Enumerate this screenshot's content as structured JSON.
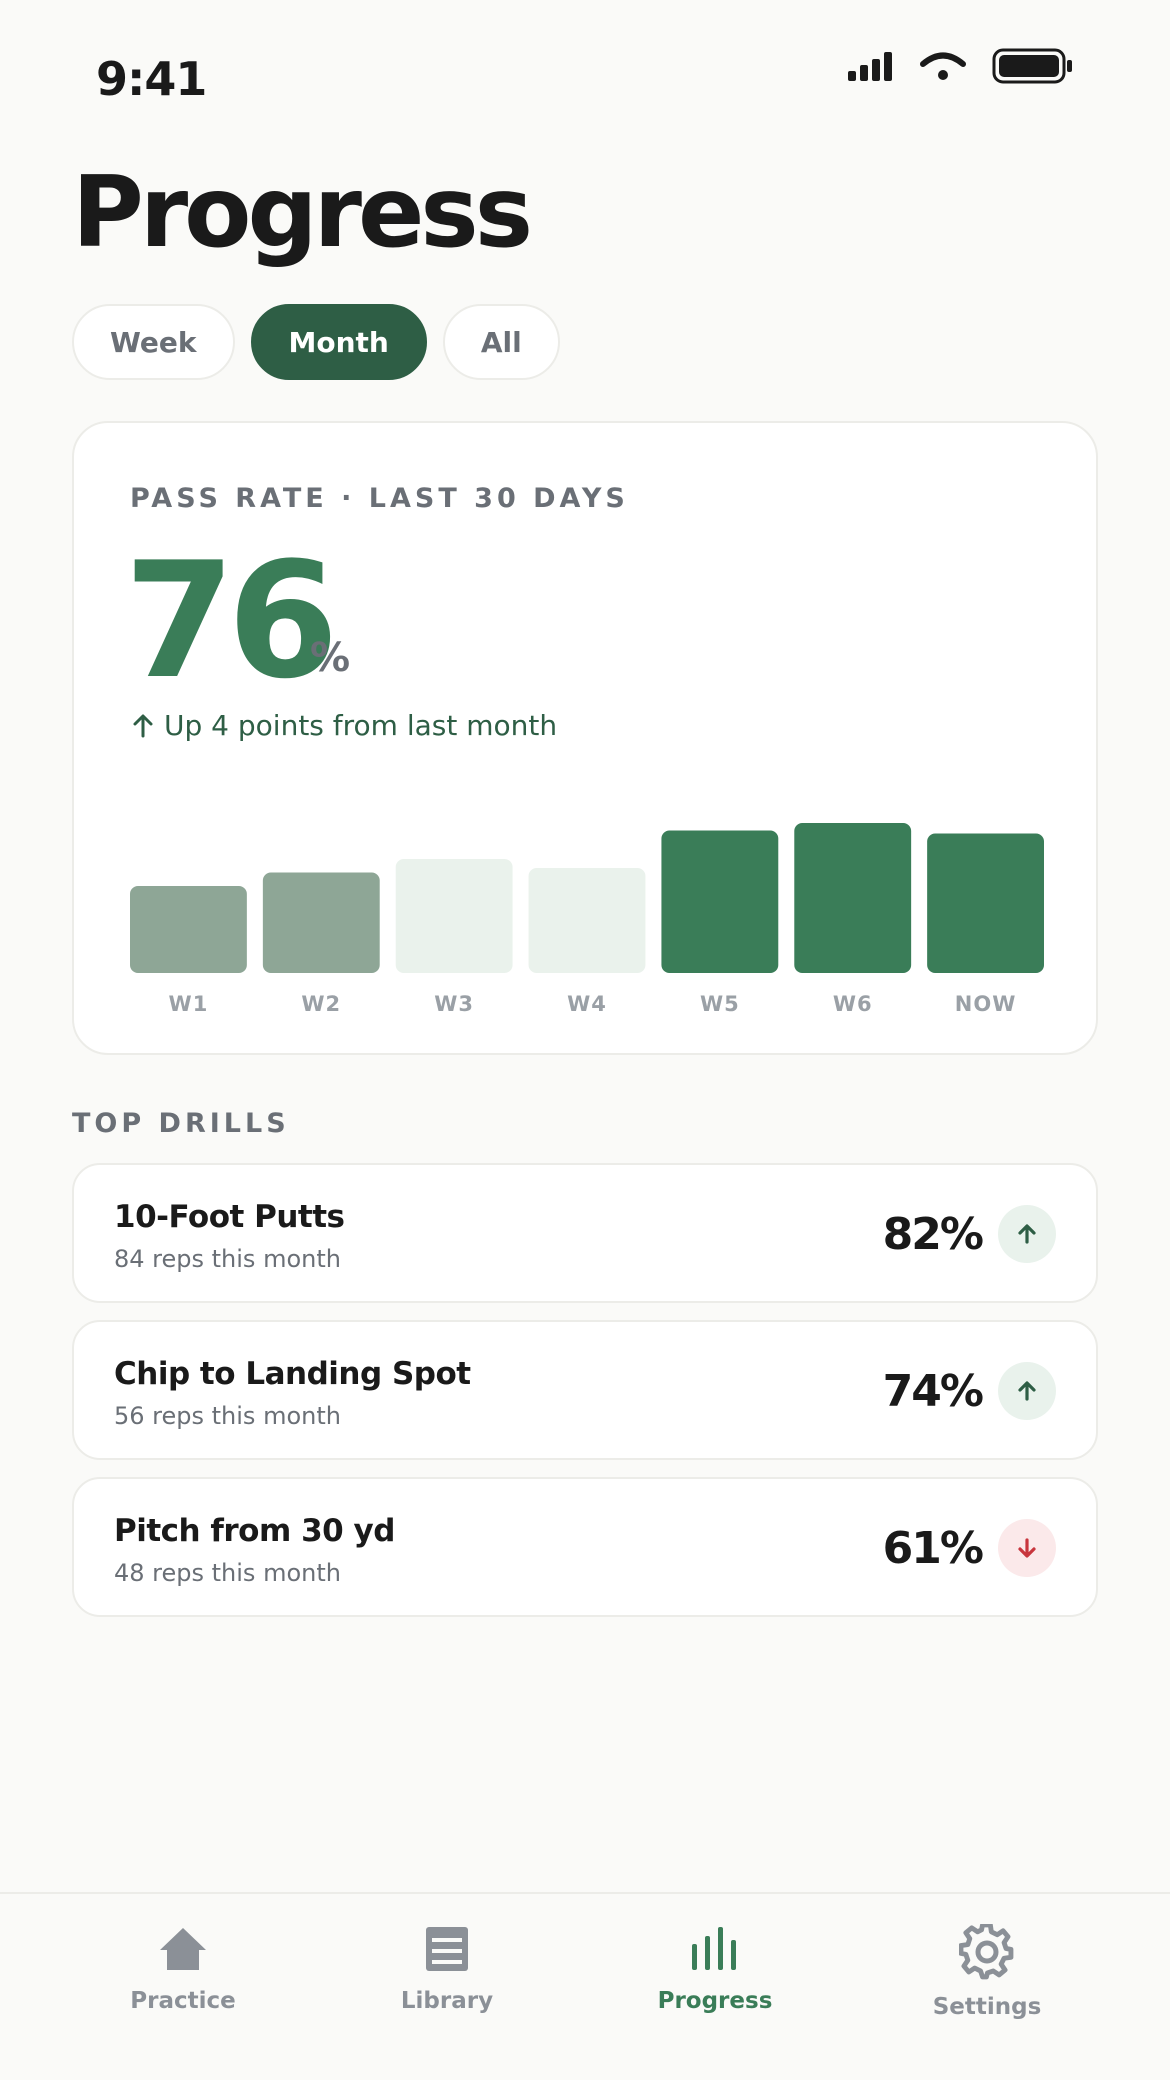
{
  "status": {
    "time": "9:41"
  },
  "title": "Progress",
  "tabs": [
    {
      "label": "Week",
      "active": false
    },
    {
      "label": "Month",
      "active": true
    },
    {
      "label": "All",
      "active": false
    }
  ],
  "summary": {
    "label": "PASS RATE · LAST 30 DAYS",
    "value": "76",
    "unit": "%",
    "delta": "Up 4 points from last month"
  },
  "chart_data": {
    "type": "bar",
    "categories": [
      "W1",
      "W2",
      "W3",
      "W4",
      "W5",
      "W6",
      "NOW"
    ],
    "values": [
      58,
      67,
      76,
      70,
      95,
      100,
      93
    ],
    "ylim": [
      0,
      100
    ],
    "bar_colors": [
      "#8ea696",
      "#8ea696",
      "#eaf2ec",
      "#eaf2ec",
      "#3a7d58",
      "#3a7d58",
      "#3a7d58"
    ],
    "grid": false
  },
  "section_label": "TOP DRILLS",
  "drills": [
    {
      "name": "10-Foot Putts",
      "sub": "84 reps this month",
      "rate": "82%",
      "trend": "up"
    },
    {
      "name": "Chip to Landing Spot",
      "sub": "56 reps this month",
      "rate": "74%",
      "trend": "up"
    },
    {
      "name": "Pitch from 30 yd",
      "sub": "48 reps this month",
      "rate": "61%",
      "trend": "down"
    }
  ],
  "nav": [
    {
      "label": "Practice",
      "icon": "home-icon",
      "active": false
    },
    {
      "label": "Library",
      "icon": "library-icon",
      "active": false
    },
    {
      "label": "Progress",
      "icon": "bar-chart-icon",
      "active": true
    },
    {
      "label": "Settings",
      "icon": "gear-icon",
      "active": false
    }
  ],
  "colors": {
    "accent": "#3a7d58",
    "accent_dark": "#2e5e45",
    "down": "#c8353d",
    "muted": "#6a6f76"
  }
}
